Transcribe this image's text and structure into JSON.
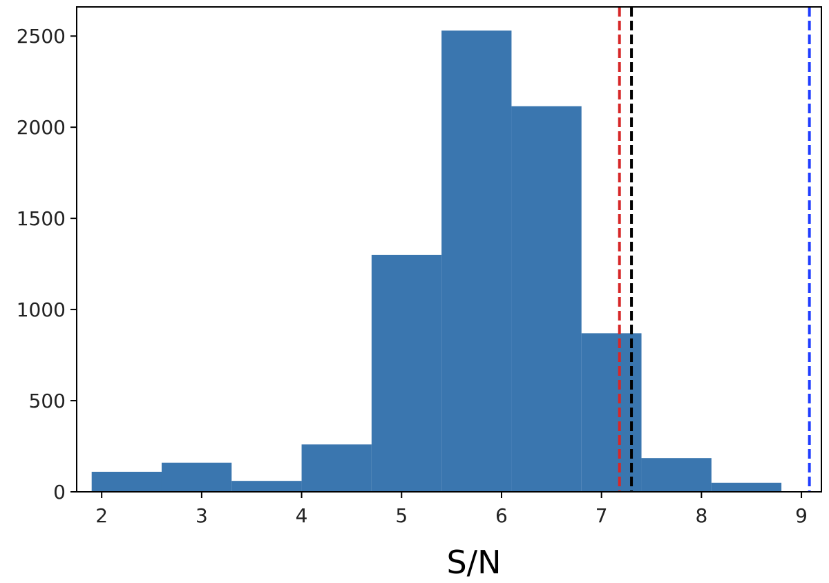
{
  "chart_data": {
    "type": "bar",
    "title": "",
    "xlabel": "S/N",
    "ylabel": "",
    "xlim": [
      1.75,
      9.2
    ],
    "ylim": [
      0,
      2660
    ],
    "grid": false,
    "bins": [
      {
        "x0": 1.9,
        "x1": 2.6,
        "count": 110
      },
      {
        "x0": 2.6,
        "x1": 3.3,
        "count": 160
      },
      {
        "x0": 3.3,
        "x1": 4.0,
        "count": 60
      },
      {
        "x0": 4.0,
        "x1": 4.7,
        "count": 260
      },
      {
        "x0": 4.7,
        "x1": 5.4,
        "count": 1300
      },
      {
        "x0": 5.4,
        "x1": 6.1,
        "count": 2530
      },
      {
        "x0": 6.1,
        "x1": 6.8,
        "count": 2115
      },
      {
        "x0": 6.8,
        "x1": 7.4,
        "count": 870
      },
      {
        "x0": 7.4,
        "x1": 8.1,
        "count": 185
      },
      {
        "x0": 8.1,
        "x1": 8.8,
        "count": 50
      }
    ],
    "x_ticks": [
      "2",
      "3",
      "4",
      "5",
      "6",
      "7",
      "8",
      "9"
    ],
    "y_ticks": [
      "0",
      "500",
      "1000",
      "1500",
      "2000",
      "2500"
    ],
    "reference_lines": [
      {
        "x": 7.18,
        "color": "#d62728",
        "style": "dashed"
      },
      {
        "x": 7.3,
        "color": "#000000",
        "style": "dashed"
      },
      {
        "x": 9.08,
        "color": "#1f3cff",
        "style": "dashed"
      }
    ],
    "bar_color": "#3a76af"
  }
}
